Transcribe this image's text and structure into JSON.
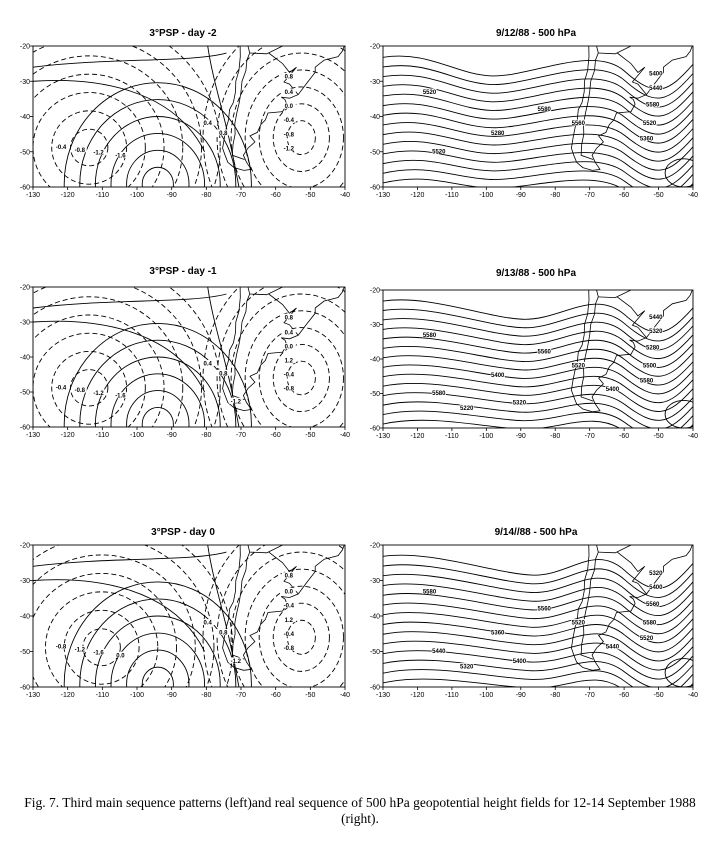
{
  "caption": "Fig. 7. Third main sequence patterns (left)and real sequence of 500 hPa geopotential height fields for 12-14 September 1988 (right).",
  "chart_data": [
    {
      "type": "contour",
      "title": "3°PSP - day -2",
      "xlim": [
        -130,
        -40
      ],
      "ylim": [
        -60,
        -20
      ],
      "xticks": [
        -130,
        -120,
        -110,
        -100,
        -90,
        -80,
        -70,
        -60,
        -50,
        -40
      ],
      "yticks": [
        -20,
        -30,
        -40,
        -50,
        -60
      ],
      "contour_labels": [
        "0.8",
        "0.4",
        "0.0",
        "-0.4",
        "-0.8",
        "-1.2",
        "-1.6",
        "0.4",
        "0.8",
        "-0.4",
        "-0.8",
        "-1.2"
      ]
    },
    {
      "type": "contour",
      "title": "9/12/88 - 500 hPa",
      "xlim": [
        -130,
        -40
      ],
      "ylim": [
        -60,
        -20
      ],
      "xticks": [
        -130,
        -120,
        -110,
        -100,
        -90,
        -80,
        -70,
        -60,
        -50,
        -40
      ],
      "yticks": [
        -20,
        -30,
        -40,
        -50,
        -60
      ],
      "contour_labels": [
        "5520",
        "5580",
        "5560",
        "5520",
        "5280",
        "5400",
        "5440",
        "5580",
        "5520",
        "5360"
      ]
    },
    {
      "type": "contour",
      "title": "3°PSP - day -1",
      "xlim": [
        -130,
        -40
      ],
      "ylim": [
        -60,
        -20
      ],
      "xticks": [
        -130,
        -120,
        -110,
        -100,
        -90,
        -80,
        -70,
        -60,
        -50,
        -40
      ],
      "yticks": [
        -20,
        -30,
        -40,
        -50,
        -60
      ],
      "contour_labels": [
        "0.8",
        "0.4",
        "0.0",
        "-0.4",
        "-0.8",
        "-1.2",
        "-1.6",
        "0.4",
        "0.8",
        "1.2",
        "-0.4",
        "-0.8",
        "-1.2"
      ]
    },
    {
      "type": "contour",
      "title": "9/13/88 - 500 hPa",
      "xlim": [
        -130,
        -40
      ],
      "ylim": [
        -60,
        -20
      ],
      "xticks": [
        -130,
        -120,
        -110,
        -100,
        -90,
        -80,
        -70,
        -60,
        -50,
        -40
      ],
      "yticks": [
        -20,
        -30,
        -40,
        -50,
        -60
      ],
      "contour_labels": [
        "5580",
        "5560",
        "5520",
        "5580",
        "5400",
        "5440",
        "5320",
        "5280",
        "5500",
        "5580",
        "5400",
        "5320",
        "5220"
      ]
    },
    {
      "type": "contour",
      "title": "9/14//88 - 500 hPa",
      "xlim": [
        -130,
        -40
      ],
      "ylim": [
        -60,
        -20
      ],
      "xticks": [
        -130,
        -120,
        -110,
        -100,
        -90,
        -80,
        -70,
        -60,
        -50,
        -40
      ],
      "yticks": [
        -20,
        -30,
        -40,
        -50,
        -60
      ],
      "contour_labels": [
        "5580",
        "5560",
        "5520",
        "5440",
        "5360",
        "5320",
        "5400",
        "5560",
        "5580",
        "5520",
        "5440",
        "5400",
        "5320"
      ]
    },
    {
      "type": "contour",
      "title": "3°PSP - day 0",
      "xlim": [
        -130,
        -40
      ],
      "ylim": [
        -60,
        -20
      ],
      "xticks": [
        -130,
        -120,
        -110,
        -100,
        -90,
        -80,
        -70,
        -60,
        -50,
        -40
      ],
      "yticks": [
        -20,
        -30,
        -40,
        -50,
        -60
      ],
      "contour_labels": [
        "0.8",
        "0.0",
        "-0.4",
        "-0.8",
        "-1.2",
        "-1.6",
        "0.0",
        "0.4",
        "0.8",
        "1.2",
        "-0.4",
        "-0.8",
        "-1.2"
      ]
    }
  ]
}
